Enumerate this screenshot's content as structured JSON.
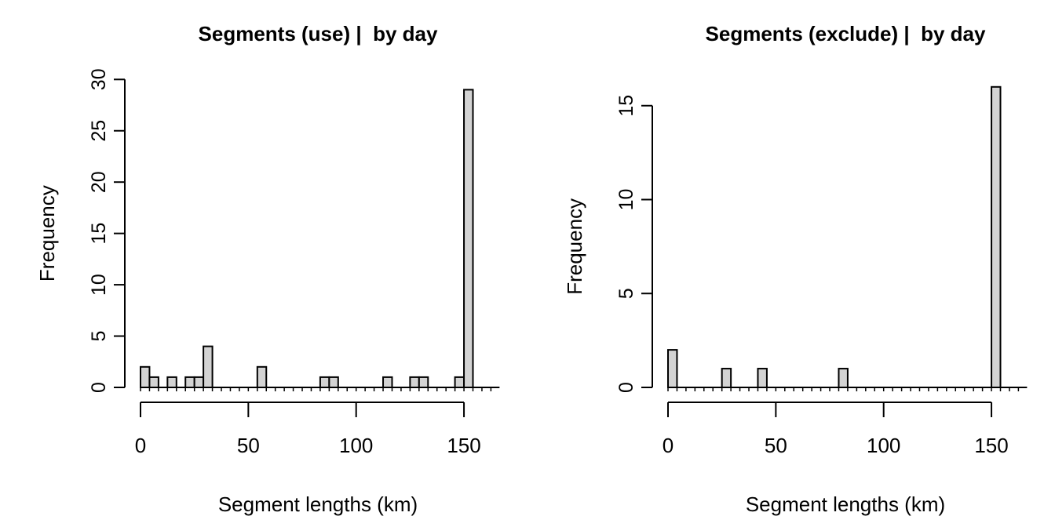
{
  "page": {
    "background": "#ffffff"
  },
  "chart_data": [
    {
      "type": "bar",
      "panel": "left",
      "title": "Segments (use) |  by day",
      "xlabel": "Segment lengths (km)",
      "ylabel": "Frequency",
      "bar_fill": "#d3d3d3",
      "bar_stroke": "#000000",
      "bin_width_km": 4.1667,
      "x_ticks": [
        0,
        50,
        100,
        150
      ],
      "y_ticks": [
        0,
        5,
        10,
        15,
        20,
        25,
        30
      ],
      "xlim": [
        0,
        166
      ],
      "ylim": [
        0,
        30
      ],
      "grid": false,
      "legend": "none",
      "bars": [
        {
          "x0": 0,
          "count": 2
        },
        {
          "x0": 4.17,
          "count": 1
        },
        {
          "x0": 12.5,
          "count": 1
        },
        {
          "x0": 20.83,
          "count": 1
        },
        {
          "x0": 25,
          "count": 1
        },
        {
          "x0": 29.17,
          "count": 4
        },
        {
          "x0": 54.17,
          "count": 2
        },
        {
          "x0": 83.33,
          "count": 1
        },
        {
          "x0": 87.5,
          "count": 1
        },
        {
          "x0": 112.5,
          "count": 1
        },
        {
          "x0": 125,
          "count": 1
        },
        {
          "x0": 129.17,
          "count": 1
        },
        {
          "x0": 145.83,
          "count": 1
        },
        {
          "x0": 150,
          "count": 29
        }
      ]
    },
    {
      "type": "bar",
      "panel": "right",
      "title": "Segments (exclude) |  by day",
      "xlabel": "Segment lengths (km)",
      "ylabel": "Frequency",
      "bar_fill": "#d3d3d3",
      "bar_stroke": "#000000",
      "bin_width_km": 4.1667,
      "x_ticks": [
        0,
        50,
        100,
        150
      ],
      "y_ticks": [
        0,
        5,
        10,
        15
      ],
      "xlim": [
        0,
        166
      ],
      "ylim": [
        0,
        16
      ],
      "grid": false,
      "legend": "none",
      "bars": [
        {
          "x0": 0,
          "count": 2
        },
        {
          "x0": 25,
          "count": 1
        },
        {
          "x0": 41.67,
          "count": 1
        },
        {
          "x0": 79.17,
          "count": 1
        },
        {
          "x0": 150,
          "count": 16
        }
      ]
    }
  ]
}
